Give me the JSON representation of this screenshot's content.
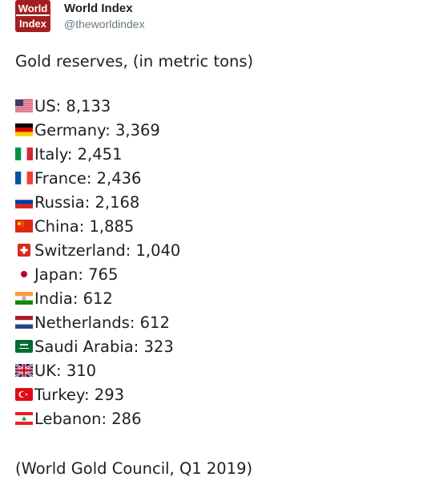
{
  "account": {
    "name": "World Index",
    "handle": "@theworldindex",
    "avatar_lines": [
      "World",
      "Index"
    ],
    "avatar_color": "#a31f1f"
  },
  "tweet": {
    "headline": "Gold reserves, (in metric tons)",
    "source": "(World Gold Council, Q1 2019)",
    "items": [
      {
        "label": "US: 8,133",
        "flag": "us-flag-icon"
      },
      {
        "label": "Germany: 3,369",
        "flag": "germany-flag-icon"
      },
      {
        "label": "Italy: 2,451",
        "flag": "italy-flag-icon"
      },
      {
        "label": "France: 2,436",
        "flag": "france-flag-icon"
      },
      {
        "label": "Russia: 2,168",
        "flag": "russia-flag-icon"
      },
      {
        "label": "China: 1,885",
        "flag": "china-flag-icon"
      },
      {
        "label": "Switzerland: 1,040",
        "flag": "switzerland-flag-icon"
      },
      {
        "label": "Japan: 765",
        "flag": "japan-flag-icon"
      },
      {
        "label": "India: 612",
        "flag": "india-flag-icon"
      },
      {
        "label": "Netherlands: 612",
        "flag": "netherlands-flag-icon"
      },
      {
        "label": "Saudi Arabia: 323",
        "flag": "saudi-arabia-flag-icon"
      },
      {
        "label": "UK: 310",
        "flag": "uk-flag-icon"
      },
      {
        "label": "Turkey: 293",
        "flag": "turkey-flag-icon"
      },
      {
        "label": "Lebanon: 286",
        "flag": "lebanon-flag-icon"
      }
    ]
  }
}
